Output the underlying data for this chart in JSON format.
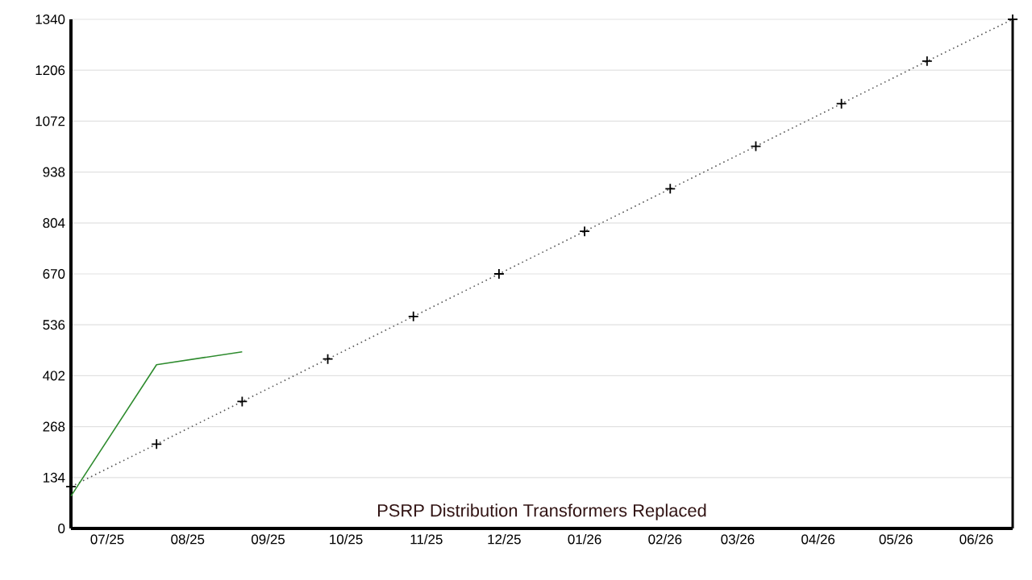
{
  "chart_data": {
    "type": "line",
    "title": "PSRP Distribution Transformers Replaced",
    "x": [
      "2025-06-17",
      "2025-07-20",
      "2025-08-22",
      "2025-09-24",
      "2025-10-27",
      "2025-11-29",
      "2026-01-01",
      "2026-02-03",
      "2026-03-08",
      "2026-04-10",
      "2026-05-13",
      "2026-06-15"
    ],
    "series": [
      {
        "color": "#555555",
        "line_style": "dotted",
        "marker": "cross",
        "values": [
          110,
          222,
          334,
          446,
          558,
          670,
          782,
          894,
          1006,
          1118,
          1230,
          1340
        ]
      },
      {
        "color": "#2e8b2e",
        "line_style": "solid",
        "marker": "none",
        "x": [
          "2025-06-17",
          "2025-07-20",
          "2025-08-22"
        ],
        "values": [
          85,
          431,
          465
        ]
      }
    ],
    "xlim": [
      "2025-06-17",
      "2026-06-15"
    ],
    "ylim": [
      0,
      1340
    ],
    "xticks": [
      {
        "value": "2025-07-01",
        "label": "07/25"
      },
      {
        "value": "2025-08-01",
        "label": "08/25"
      },
      {
        "value": "2025-09-01",
        "label": "09/25"
      },
      {
        "value": "2025-10-01",
        "label": "10/25"
      },
      {
        "value": "2025-11-01",
        "label": "11/25"
      },
      {
        "value": "2025-12-01",
        "label": "12/25"
      },
      {
        "value": "2026-01-01",
        "label": "01/26"
      },
      {
        "value": "2026-02-01",
        "label": "02/26"
      },
      {
        "value": "2026-03-01",
        "label": "03/26"
      },
      {
        "value": "2026-04-01",
        "label": "04/26"
      },
      {
        "value": "2026-05-01",
        "label": "05/26"
      },
      {
        "value": "2026-06-01",
        "label": "06/26"
      }
    ],
    "yticks": [
      0,
      134,
      268,
      402,
      536,
      670,
      804,
      938,
      1072,
      1206,
      1340
    ],
    "grid": "y",
    "legend": false
  }
}
